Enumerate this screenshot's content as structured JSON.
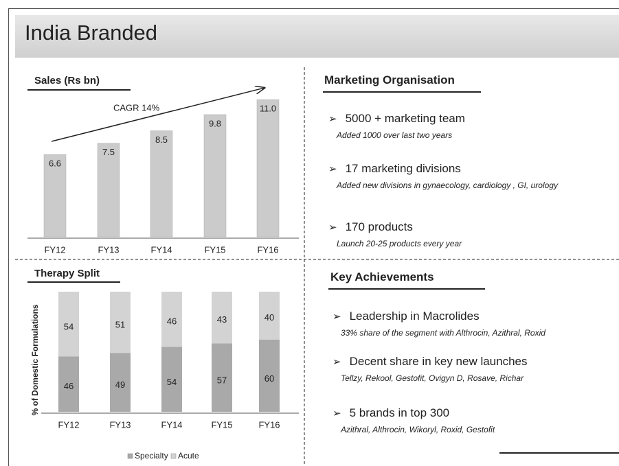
{
  "title": "India Branded",
  "chart_data": [
    {
      "type": "bar",
      "title": "Sales (Rs bn)",
      "annotation": "CAGR 14%",
      "categories": [
        "FY12",
        "FY13",
        "FY14",
        "FY15",
        "FY16"
      ],
      "values": [
        6.6,
        7.5,
        8.5,
        9.8,
        11.0
      ],
      "value_labels": [
        "6.6",
        "7.5",
        "8.5",
        "9.8",
        "11.0"
      ],
      "color": "#cbcbcb",
      "ylim": [
        0,
        12
      ]
    },
    {
      "type": "stacked_bar",
      "title": "Therapy Split",
      "ylabel": "% of Domestic Formulations",
      "categories": [
        "FY12",
        "FY13",
        "FY14",
        "FY15",
        "FY16"
      ],
      "series": [
        {
          "name": "Specialty",
          "color": "#a9a9a9",
          "values": [
            46,
            49,
            54,
            57,
            60
          ]
        },
        {
          "name": "Acute",
          "color": "#d3d3d3",
          "values": [
            54,
            51,
            46,
            43,
            40
          ]
        }
      ],
      "ylim": [
        0,
        100
      ]
    }
  ],
  "marketing": {
    "title": "Marketing Organisation",
    "items": [
      {
        "heading": "5000 + marketing team",
        "detail": "Added 1000 over last two years"
      },
      {
        "heading": "17 marketing divisions",
        "detail": "Added new divisions in gynaecology, cardiology , GI, urology"
      },
      {
        "heading": "170 products",
        "detail": "Launch 20-25 products every year"
      }
    ]
  },
  "achievements": {
    "title": "Key Achievements",
    "items": [
      {
        "heading": "Leadership in Macrolides",
        "detail": "33% share of the segment with Althrocin, Azithral, Roxid"
      },
      {
        "heading": "Decent share in key new launches",
        "detail": "Tellzy, Rekool, Gestofit, Ovigyn D, Rosave, Richar"
      },
      {
        "heading": "5 brands in top 300",
        "detail": "Azithral, Althrocin, Wikoryl, Roxid, Gestofit"
      }
    ]
  }
}
